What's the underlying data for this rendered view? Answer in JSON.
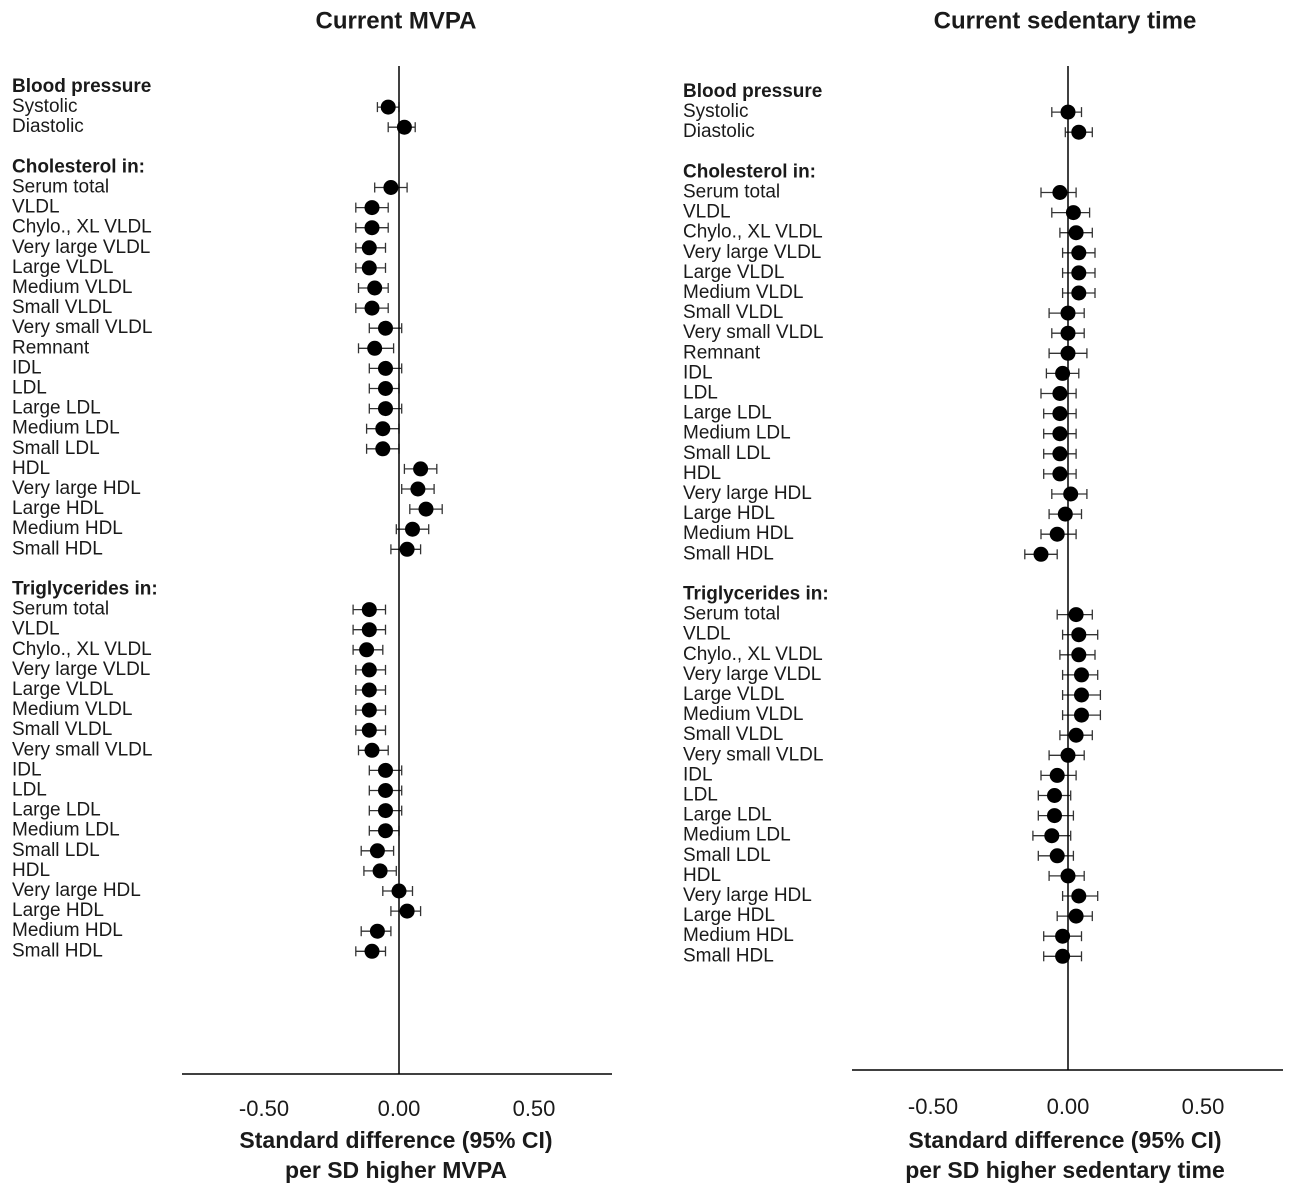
{
  "chart_data": [
    {
      "type": "scatter",
      "title": "Current MVPA",
      "xlabel": [
        "Standard difference (95% CI)",
        "per SD higher MVPA"
      ],
      "xlim": [
        -0.8,
        0.8
      ],
      "xticks": [
        "-0.50",
        "0.00",
        "0.50"
      ],
      "xtick_values": [
        -0.5,
        0,
        0.5
      ],
      "grid": false,
      "groups": [
        {
          "name": "Blood pressure",
          "rows": [
            {
              "label": "Systolic",
              "est": -0.04,
              "lo": -0.08,
              "hi": 0.0
            },
            {
              "label": "Diastolic",
              "est": 0.02,
              "lo": -0.04,
              "hi": 0.06
            }
          ]
        },
        {
          "name": "Cholesterol in:",
          "rows": [
            {
              "label": "Serum total",
              "est": -0.03,
              "lo": -0.09,
              "hi": 0.03
            },
            {
              "label": "VLDL",
              "est": -0.1,
              "lo": -0.16,
              "hi": -0.04
            },
            {
              "label": "Chylo., XL VLDL",
              "est": -0.1,
              "lo": -0.16,
              "hi": -0.04
            },
            {
              "label": "Very large VLDL",
              "est": -0.11,
              "lo": -0.16,
              "hi": -0.05
            },
            {
              "label": "Large VLDL",
              "est": -0.11,
              "lo": -0.16,
              "hi": -0.05
            },
            {
              "label": "Medium VLDL",
              "est": -0.09,
              "lo": -0.15,
              "hi": -0.04
            },
            {
              "label": "Small VLDL",
              "est": -0.1,
              "lo": -0.16,
              "hi": -0.04
            },
            {
              "label": "Very small VLDL",
              "est": -0.05,
              "lo": -0.11,
              "hi": 0.01
            },
            {
              "label": "Remnant",
              "est": -0.09,
              "lo": -0.15,
              "hi": -0.02
            },
            {
              "label": "IDL",
              "est": -0.05,
              "lo": -0.11,
              "hi": 0.01
            },
            {
              "label": "LDL",
              "est": -0.05,
              "lo": -0.11,
              "hi": 0.0
            },
            {
              "label": "Large LDL",
              "est": -0.05,
              "lo": -0.11,
              "hi": 0.01
            },
            {
              "label": "Medium LDL",
              "est": -0.06,
              "lo": -0.12,
              "hi": 0.0
            },
            {
              "label": "Small LDL",
              "est": -0.06,
              "lo": -0.12,
              "hi": 0.0
            },
            {
              "label": "HDL",
              "est": 0.08,
              "lo": 0.02,
              "hi": 0.14
            },
            {
              "label": "Very large HDL",
              "est": 0.07,
              "lo": 0.01,
              "hi": 0.13
            },
            {
              "label": "Large HDL",
              "est": 0.1,
              "lo": 0.04,
              "hi": 0.16
            },
            {
              "label": "Medium HDL",
              "est": 0.05,
              "lo": -0.01,
              "hi": 0.11
            },
            {
              "label": "Small HDL",
              "est": 0.03,
              "lo": -0.03,
              "hi": 0.08
            }
          ]
        },
        {
          "name": "Triglycerides in:",
          "rows": [
            {
              "label": "Serum total",
              "est": -0.11,
              "lo": -0.17,
              "hi": -0.05
            },
            {
              "label": "VLDL",
              "est": -0.11,
              "lo": -0.17,
              "hi": -0.05
            },
            {
              "label": "Chylo., XL VLDL",
              "est": -0.12,
              "lo": -0.17,
              "hi": -0.06
            },
            {
              "label": "Very large VLDL",
              "est": -0.11,
              "lo": -0.16,
              "hi": -0.05
            },
            {
              "label": "Large VLDL",
              "est": -0.11,
              "lo": -0.16,
              "hi": -0.05
            },
            {
              "label": "Medium VLDL",
              "est": -0.11,
              "lo": -0.16,
              "hi": -0.05
            },
            {
              "label": "Small VLDL",
              "est": -0.11,
              "lo": -0.16,
              "hi": -0.05
            },
            {
              "label": "Very small VLDL",
              "est": -0.1,
              "lo": -0.15,
              "hi": -0.04
            },
            {
              "label": "IDL",
              "est": -0.05,
              "lo": -0.11,
              "hi": 0.01
            },
            {
              "label": "LDL",
              "est": -0.05,
              "lo": -0.11,
              "hi": 0.01
            },
            {
              "label": "Large LDL",
              "est": -0.05,
              "lo": -0.11,
              "hi": 0.01
            },
            {
              "label": "Medium LDL",
              "est": -0.05,
              "lo": -0.11,
              "hi": 0.0
            },
            {
              "label": "Small LDL",
              "est": -0.08,
              "lo": -0.14,
              "hi": -0.02
            },
            {
              "label": "HDL",
              "est": -0.07,
              "lo": -0.13,
              "hi": -0.01
            },
            {
              "label": "Very large HDL",
              "est": 0.0,
              "lo": -0.06,
              "hi": 0.05
            },
            {
              "label": "Large HDL",
              "est": 0.03,
              "lo": -0.03,
              "hi": 0.08
            },
            {
              "label": "Medium HDL",
              "est": -0.08,
              "lo": -0.14,
              "hi": -0.03
            },
            {
              "label": "Small HDL",
              "est": -0.1,
              "lo": -0.16,
              "hi": -0.05
            }
          ]
        }
      ]
    },
    {
      "type": "scatter",
      "title": "Current sedentary time",
      "xlabel": [
        "Standard difference (95% CI)",
        "per SD higher sedentary time"
      ],
      "xlim": [
        -0.8,
        0.8
      ],
      "xticks": [
        "-0.50",
        "0.00",
        "0.50"
      ],
      "xtick_values": [
        -0.5,
        0,
        0.5
      ],
      "grid": false,
      "groups": [
        {
          "name": "Blood pressure",
          "rows": [
            {
              "label": "Systolic",
              "est": 0.0,
              "lo": -0.06,
              "hi": 0.05
            },
            {
              "label": "Diastolic",
              "est": 0.04,
              "lo": -0.01,
              "hi": 0.09
            }
          ]
        },
        {
          "name": "Cholesterol in:",
          "rows": [
            {
              "label": "Serum total",
              "est": -0.03,
              "lo": -0.1,
              "hi": 0.03
            },
            {
              "label": "VLDL",
              "est": 0.02,
              "lo": -0.06,
              "hi": 0.08
            },
            {
              "label": "Chylo., XL VLDL",
              "est": 0.03,
              "lo": -0.03,
              "hi": 0.09
            },
            {
              "label": "Very large VLDL",
              "est": 0.04,
              "lo": -0.02,
              "hi": 0.1
            },
            {
              "label": "Large VLDL",
              "est": 0.04,
              "lo": -0.02,
              "hi": 0.1
            },
            {
              "label": "Medium VLDL",
              "est": 0.04,
              "lo": -0.02,
              "hi": 0.1
            },
            {
              "label": "Small VLDL",
              "est": 0.0,
              "lo": -0.07,
              "hi": 0.06
            },
            {
              "label": "Very small VLDL",
              "est": 0.0,
              "lo": -0.06,
              "hi": 0.06
            },
            {
              "label": "Remnant",
              "est": 0.0,
              "lo": -0.07,
              "hi": 0.07
            },
            {
              "label": "IDL",
              "est": -0.02,
              "lo": -0.08,
              "hi": 0.04
            },
            {
              "label": "LDL",
              "est": -0.03,
              "lo": -0.1,
              "hi": 0.03
            },
            {
              "label": "Large LDL",
              "est": -0.03,
              "lo": -0.09,
              "hi": 0.03
            },
            {
              "label": "Medium LDL",
              "est": -0.03,
              "lo": -0.09,
              "hi": 0.03
            },
            {
              "label": "Small LDL",
              "est": -0.03,
              "lo": -0.09,
              "hi": 0.03
            },
            {
              "label": "HDL",
              "est": -0.03,
              "lo": -0.09,
              "hi": 0.03
            },
            {
              "label": "Very large HDL",
              "est": 0.01,
              "lo": -0.06,
              "hi": 0.07
            },
            {
              "label": "Large HDL",
              "est": -0.01,
              "lo": -0.07,
              "hi": 0.05
            },
            {
              "label": "Medium HDL",
              "est": -0.04,
              "lo": -0.1,
              "hi": 0.03
            },
            {
              "label": "Small HDL",
              "est": -0.1,
              "lo": -0.16,
              "hi": -0.04
            }
          ]
        },
        {
          "name": "Triglycerides in:",
          "rows": [
            {
              "label": "Serum total",
              "est": 0.03,
              "lo": -0.04,
              "hi": 0.09
            },
            {
              "label": "VLDL",
              "est": 0.04,
              "lo": -0.02,
              "hi": 0.11
            },
            {
              "label": "Chylo., XL VLDL",
              "est": 0.04,
              "lo": -0.03,
              "hi": 0.1
            },
            {
              "label": "Very large VLDL",
              "est": 0.05,
              "lo": -0.02,
              "hi": 0.11
            },
            {
              "label": "Large VLDL",
              "est": 0.05,
              "lo": -0.02,
              "hi": 0.12
            },
            {
              "label": "Medium VLDL",
              "est": 0.05,
              "lo": -0.02,
              "hi": 0.12
            },
            {
              "label": "Small VLDL",
              "est": 0.03,
              "lo": -0.03,
              "hi": 0.09
            },
            {
              "label": "Very small VLDL",
              "est": 0.0,
              "lo": -0.07,
              "hi": 0.06
            },
            {
              "label": "IDL",
              "est": -0.04,
              "lo": -0.1,
              "hi": 0.03
            },
            {
              "label": "LDL",
              "est": -0.05,
              "lo": -0.11,
              "hi": 0.01
            },
            {
              "label": "Large LDL",
              "est": -0.05,
              "lo": -0.11,
              "hi": 0.02
            },
            {
              "label": "Medium LDL",
              "est": -0.06,
              "lo": -0.13,
              "hi": 0.01
            },
            {
              "label": "Small LDL",
              "est": -0.04,
              "lo": -0.11,
              "hi": 0.02
            },
            {
              "label": "HDL",
              "est": 0.0,
              "lo": -0.07,
              "hi": 0.06
            },
            {
              "label": "Very large HDL",
              "est": 0.04,
              "lo": -0.02,
              "hi": 0.11
            },
            {
              "label": "Large HDL",
              "est": 0.03,
              "lo": -0.04,
              "hi": 0.09
            },
            {
              "label": "Medium HDL",
              "est": -0.02,
              "lo": -0.09,
              "hi": 0.05
            },
            {
              "label": "Small HDL",
              "est": -0.02,
              "lo": -0.09,
              "hi": 0.05
            }
          ]
        }
      ]
    }
  ]
}
